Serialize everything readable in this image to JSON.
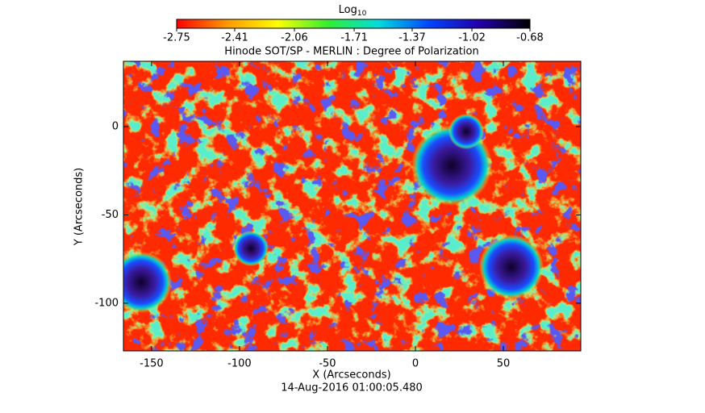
{
  "chart_data": {
    "type": "image",
    "title": "Hinode SOT/SP - MERLIN : Degree of Polarization",
    "x_label": "X (Arcseconds)",
    "y_label": "Y (Arcseconds)",
    "footer": "14-Aug-2016 01:00:05.480",
    "xlim": [
      -166,
      94
    ],
    "ylim": [
      -127,
      37
    ],
    "xticks": [
      -150,
      -100,
      -50,
      0,
      50
    ],
    "yticks": [
      -100,
      -50,
      0
    ],
    "colorbar": {
      "label": "Log",
      "label_subscript": "10",
      "lim": [
        -2.75,
        -0.68
      ],
      "ticks": [
        -2.75,
        -2.41,
        -2.06,
        -1.71,
        -1.37,
        -1.02,
        -0.68
      ],
      "colors": [
        "#ff0000",
        "#ff9900",
        "#ffff00",
        "#33ee33",
        "#00dddd",
        "#0044ff",
        "#2200aa",
        "#000000"
      ]
    }
  }
}
